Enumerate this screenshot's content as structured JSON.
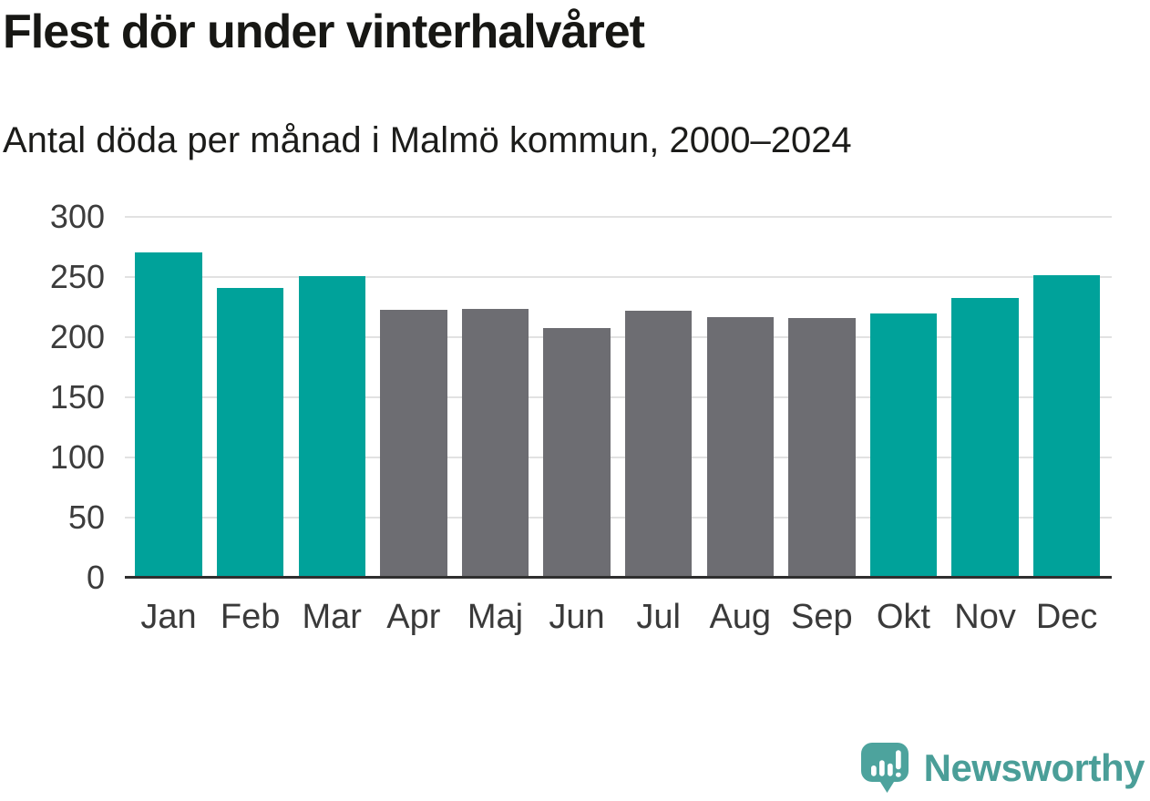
{
  "header": {
    "title": "Flest dör under vinterhalvåret",
    "subtitle": "Antal döda per månad i Malmö kommun, 2000–2024"
  },
  "chart_data": {
    "type": "bar",
    "title": "Flest dör under vinterhalvåret",
    "subtitle": "Antal döda per månad i Malmö kommun, 2000–2024",
    "categories": [
      "Jan",
      "Feb",
      "Mar",
      "Apr",
      "Maj",
      "Jun",
      "Jul",
      "Aug",
      "Sep",
      "Okt",
      "Nov",
      "Dec"
    ],
    "values": [
      270,
      240,
      250,
      222,
      223,
      207,
      221,
      216,
      215,
      219,
      232,
      251
    ],
    "groups": [
      "winter",
      "winter",
      "winter",
      "summer",
      "summer",
      "summer",
      "summer",
      "summer",
      "summer",
      "winter",
      "winter",
      "winter"
    ],
    "colors": {
      "winter": "#00A29A",
      "summer": "#6D6D72"
    },
    "xlabel": "",
    "ylabel": "",
    "ylim": [
      0,
      300
    ],
    "yticks": [
      0,
      50,
      100,
      150,
      200,
      250,
      300
    ],
    "grid": true,
    "legend": "none"
  },
  "footer": {
    "brand": "Newsworthy",
    "brand_color": "#4A9E98",
    "logo_color": "#4DA39D"
  }
}
